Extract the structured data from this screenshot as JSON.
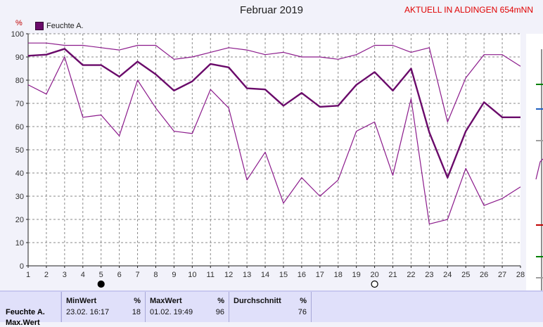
{
  "header": {
    "title": "Februar 2019",
    "station": "AKTUELL IN ALDINGEN 654mNN",
    "unit": "%"
  },
  "legend": {
    "label": "Feuchte A."
  },
  "chart_data": {
    "type": "line",
    "title": "Februar 2019",
    "ylabel": "%",
    "ylim": [
      0,
      100
    ],
    "xlim": [
      1,
      28
    ],
    "grid": true,
    "legend_position": "top-left",
    "x": [
      1,
      2,
      3,
      4,
      5,
      6,
      7,
      8,
      9,
      10,
      11,
      12,
      13,
      14,
      15,
      16,
      17,
      18,
      19,
      20,
      21,
      22,
      23,
      24,
      25,
      26,
      27,
      28
    ],
    "x_ticks": [
      "1",
      "2",
      "3",
      "4",
      "5",
      "6",
      "7",
      "8",
      "9",
      "10",
      "11",
      "12",
      "13",
      "14",
      "15",
      "16",
      "17",
      "18",
      "19",
      "20",
      "21",
      "22",
      "23",
      "24",
      "25",
      "26",
      "27",
      "28"
    ],
    "y_ticks": [
      "0",
      "10",
      "20",
      "30",
      "40",
      "50",
      "60",
      "70",
      "80",
      "90",
      "100"
    ],
    "series": [
      {
        "name": "Feuchte A.",
        "role": "max",
        "color": "#8b1a8b",
        "values": [
          96,
          96,
          95,
          95,
          94,
          93,
          95,
          95,
          89,
          90,
          92,
          94,
          93,
          91,
          92,
          90,
          90,
          89,
          91,
          95,
          95,
          92,
          94,
          62,
          81,
          91,
          91,
          86
        ]
      },
      {
        "name": "Feuchte A.",
        "role": "mean",
        "color": "#6a0a6a",
        "values": [
          90.5,
          91,
          93.5,
          86.5,
          86.5,
          81.5,
          88,
          82.5,
          75.5,
          79.5,
          87,
          85.5,
          76.5,
          76,
          69,
          74.5,
          68.5,
          69,
          78,
          83.5,
          75.5,
          85,
          57.5,
          38,
          58,
          70.5,
          64,
          64
        ]
      },
      {
        "name": "Feuchte A.",
        "role": "min",
        "color": "#8b1a8b",
        "values": [
          78,
          74,
          90,
          64,
          65,
          56,
          80,
          68,
          58,
          57,
          76,
          68,
          37,
          49,
          27,
          38,
          30,
          37,
          58,
          62,
          39,
          72,
          18,
          20,
          42,
          26,
          29,
          34
        ]
      }
    ],
    "markers": [
      {
        "day": 5,
        "symbol": "filled-circle"
      },
      {
        "day": 20,
        "symbol": "open-circle"
      }
    ]
  },
  "stats": {
    "series_name": "Feuchte A.",
    "series_name2": "Max.Wert",
    "min": {
      "label": "MinWert",
      "unit": "%",
      "date": "23.02.  16:17",
      "value": "18"
    },
    "max": {
      "label": "MaxWert",
      "unit": "%",
      "date": "01.02.  19:49",
      "value": "96"
    },
    "avg": {
      "label": "Durchschnitt",
      "unit": "%",
      "value": "76"
    }
  }
}
